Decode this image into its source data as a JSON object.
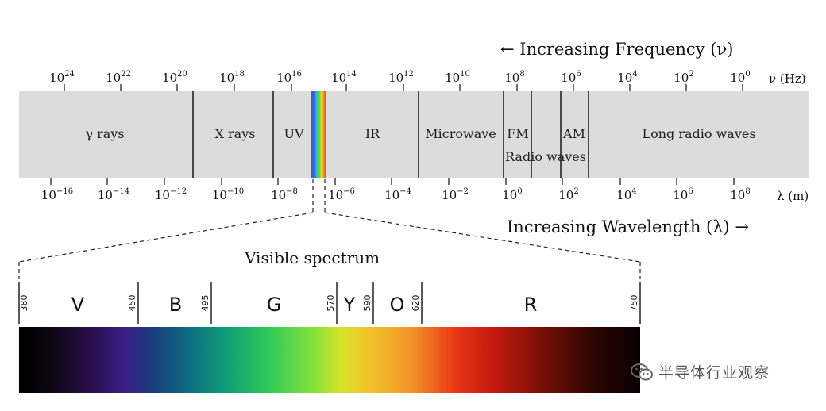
{
  "header": {
    "frequency_arrow": "← Increasing Frequency (ν)",
    "wavelength_arrow": "Increasing Wavelength (λ) →",
    "freq_unit": "ν (Hz)",
    "wave_unit": "λ (m)"
  },
  "freq_ticks": [
    "24",
    "22",
    "20",
    "18",
    "16",
    "14",
    "12",
    "10",
    "8",
    "6",
    "4",
    "2",
    "0"
  ],
  "wave_ticks": [
    "−16",
    "−14",
    "−12",
    "−10",
    "−8",
    "−6",
    "−4",
    "−2",
    "0",
    "2",
    "4",
    "6",
    "8"
  ],
  "tick_base": "10",
  "bands": {
    "gamma": "γ rays",
    "xray": "X rays",
    "uv": "UV",
    "ir": "IR",
    "microwave": "Microwave",
    "fm": "FM",
    "am": "AM",
    "radio": "Radio waves",
    "long_radio": "Long radio waves"
  },
  "visible": {
    "title": "Visible spectrum",
    "colors": [
      {
        "letter": "V"
      },
      {
        "letter": "B"
      },
      {
        "letter": "G"
      },
      {
        "letter": "Y"
      },
      {
        "letter": "O"
      },
      {
        "letter": "R"
      }
    ],
    "boundaries": [
      "380",
      "450",
      "495",
      "570",
      "590",
      "620",
      "750"
    ]
  },
  "watermark": {
    "text": "半导体行业观察",
    "icon": "wechat-icon"
  }
}
